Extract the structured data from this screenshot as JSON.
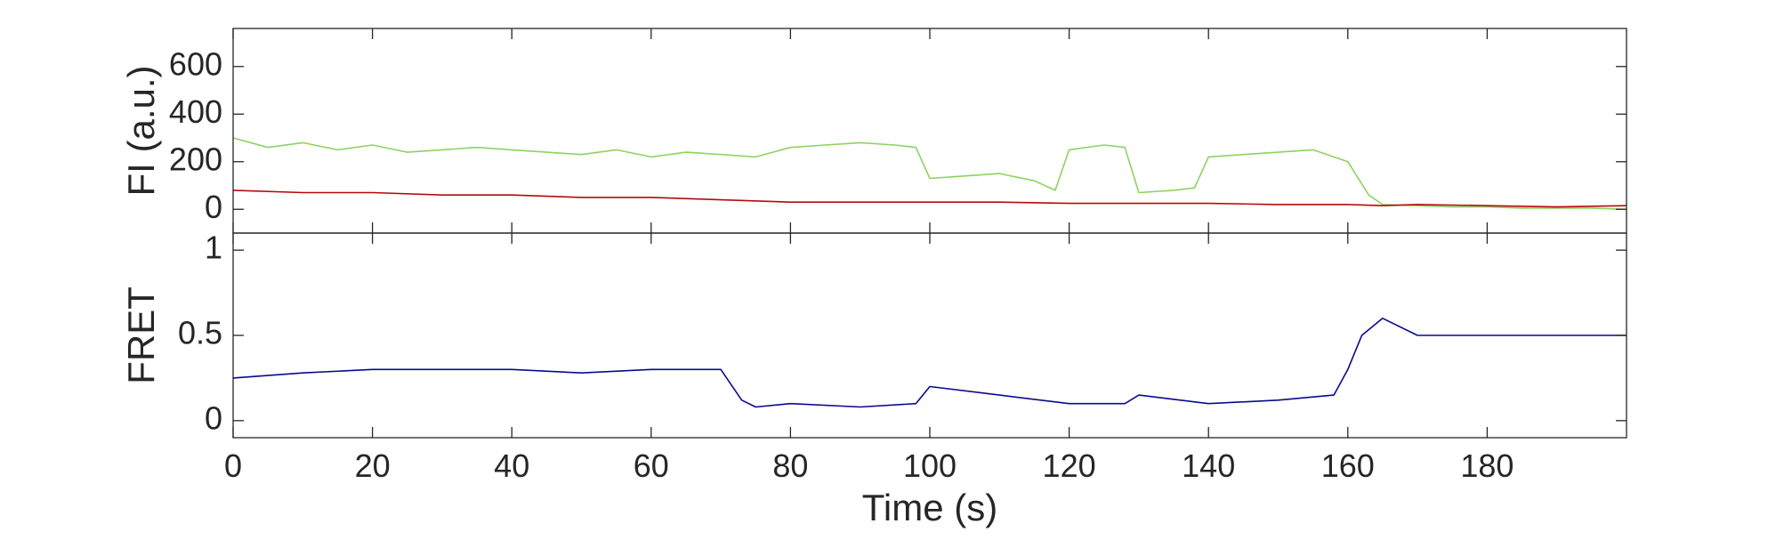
{
  "chart_data": [
    {
      "type": "line",
      "ylabel": "FI (a.u.)",
      "xlim": [
        0,
        200
      ],
      "ylim": [
        -100,
        760
      ],
      "yticks": [
        0,
        200,
        400,
        600
      ],
      "ytick_labels": [
        "0",
        "200",
        "400",
        "600"
      ],
      "grid": false,
      "series": [
        {
          "color": "#8dd35f",
          "x": [
            0,
            5,
            10,
            15,
            20,
            25,
            30,
            35,
            40,
            45,
            50,
            55,
            60,
            65,
            70,
            75,
            80,
            85,
            90,
            95,
            98,
            100,
            105,
            110,
            115,
            118,
            120,
            125,
            128,
            130,
            135,
            138,
            140,
            145,
            150,
            155,
            160,
            163,
            165,
            170,
            175,
            180,
            185,
            190,
            195,
            200
          ],
          "y": [
            300,
            260,
            280,
            250,
            270,
            240,
            250,
            260,
            250,
            240,
            230,
            250,
            220,
            240,
            230,
            220,
            260,
            270,
            280,
            270,
            260,
            130,
            140,
            150,
            120,
            80,
            250,
            270,
            260,
            70,
            80,
            90,
            220,
            230,
            240,
            250,
            200,
            60,
            20,
            15,
            10,
            10,
            5,
            5,
            5,
            0
          ]
        },
        {
          "color": "#b40a0a",
          "x": [
            0,
            10,
            20,
            30,
            40,
            50,
            60,
            70,
            80,
            90,
            100,
            110,
            120,
            130,
            140,
            150,
            160,
            165,
            170,
            180,
            190,
            200
          ],
          "y": [
            80,
            70,
            70,
            60,
            60,
            50,
            50,
            40,
            30,
            30,
            30,
            30,
            25,
            25,
            25,
            20,
            20,
            15,
            20,
            15,
            10,
            15
          ]
        }
      ]
    },
    {
      "type": "line",
      "xlabel": "Time (s)",
      "ylabel": "FRET",
      "xlim": [
        0,
        200
      ],
      "ylim": [
        -0.1,
        1.1
      ],
      "xticks": [
        0,
        20,
        40,
        60,
        80,
        100,
        120,
        140,
        160,
        180
      ],
      "xtick_labels": [
        "0",
        "20",
        "40",
        "60",
        "80",
        "100",
        "120",
        "140",
        "160",
        "180"
      ],
      "yticks": [
        0,
        0.5,
        1
      ],
      "ytick_labels": [
        "0",
        "0.5",
        "1"
      ],
      "grid": false,
      "series": [
        {
          "color": "#0a0a8c",
          "x": [
            0,
            10,
            20,
            30,
            40,
            50,
            60,
            70,
            73,
            75,
            80,
            90,
            98,
            100,
            110,
            120,
            128,
            130,
            140,
            150,
            158,
            160,
            162,
            165,
            170,
            180,
            190,
            200
          ],
          "y": [
            0.25,
            0.28,
            0.3,
            0.3,
            0.3,
            0.28,
            0.3,
            0.3,
            0.12,
            0.08,
            0.1,
            0.08,
            0.1,
            0.2,
            0.15,
            0.1,
            0.1,
            0.15,
            0.1,
            0.12,
            0.15,
            0.3,
            0.5,
            0.6,
            0.5,
            0.5,
            0.5,
            0.5
          ]
        }
      ]
    }
  ]
}
